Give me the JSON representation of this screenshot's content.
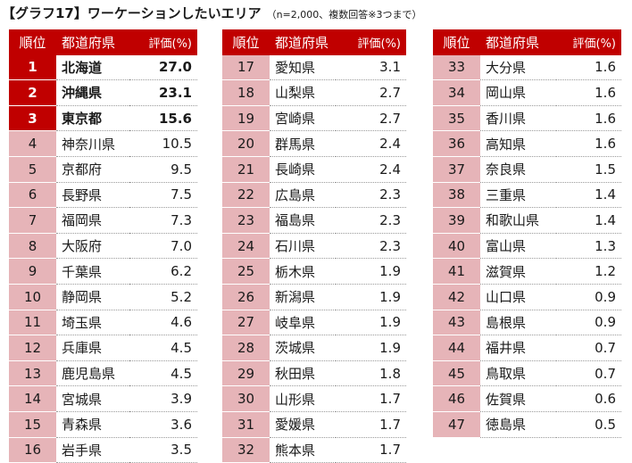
{
  "title": "【グラフ17】ワーケーションしたいエリア",
  "note": "（n=2,000、複数回答※3つまで）",
  "headers": {
    "rank": "順位",
    "name": "都道府県",
    "value": "評価(%)"
  },
  "colors": {
    "header_bg": "#c00000",
    "rank_bg": "#e6b4b8",
    "header_text": "#ffffff"
  },
  "chart_data": {
    "type": "table",
    "columns": [
      "順位",
      "都道府県",
      "評価(%)"
    ],
    "rows": [
      [
        "1",
        "北海道",
        "27.0"
      ],
      [
        "2",
        "沖縄県",
        "23.1"
      ],
      [
        "3",
        "東京都",
        "15.6"
      ],
      [
        "4",
        "神奈川県",
        "10.5"
      ],
      [
        "5",
        "京都府",
        "9.5"
      ],
      [
        "6",
        "長野県",
        "7.5"
      ],
      [
        "7",
        "福岡県",
        "7.3"
      ],
      [
        "8",
        "大阪府",
        "7.0"
      ],
      [
        "9",
        "千葉県",
        "6.2"
      ],
      [
        "10",
        "静岡県",
        "5.2"
      ],
      [
        "11",
        "埼玉県",
        "4.6"
      ],
      [
        "12",
        "兵庫県",
        "4.5"
      ],
      [
        "13",
        "鹿児島県",
        "4.5"
      ],
      [
        "14",
        "宮城県",
        "3.9"
      ],
      [
        "15",
        "青森県",
        "3.6"
      ],
      [
        "16",
        "岩手県",
        "3.5"
      ],
      [
        "17",
        "愛知県",
        "3.1"
      ],
      [
        "18",
        "山梨県",
        "2.7"
      ],
      [
        "19",
        "宮崎県",
        "2.7"
      ],
      [
        "20",
        "群馬県",
        "2.4"
      ],
      [
        "21",
        "長崎県",
        "2.4"
      ],
      [
        "22",
        "広島県",
        "2.3"
      ],
      [
        "23",
        "福島県",
        "2.3"
      ],
      [
        "24",
        "石川県",
        "2.3"
      ],
      [
        "25",
        "栃木県",
        "1.9"
      ],
      [
        "26",
        "新潟県",
        "1.9"
      ],
      [
        "27",
        "岐阜県",
        "1.9"
      ],
      [
        "28",
        "茨城県",
        "1.9"
      ],
      [
        "29",
        "秋田県",
        "1.8"
      ],
      [
        "30",
        "山形県",
        "1.7"
      ],
      [
        "31",
        "愛媛県",
        "1.7"
      ],
      [
        "32",
        "熊本県",
        "1.7"
      ],
      [
        "33",
        "大分県",
        "1.6"
      ],
      [
        "34",
        "岡山県",
        "1.6"
      ],
      [
        "35",
        "香川県",
        "1.6"
      ],
      [
        "36",
        "高知県",
        "1.6"
      ],
      [
        "37",
        "奈良県",
        "1.5"
      ],
      [
        "38",
        "三重県",
        "1.4"
      ],
      [
        "39",
        "和歌山県",
        "1.4"
      ],
      [
        "40",
        "富山県",
        "1.3"
      ],
      [
        "41",
        "滋賀県",
        "1.2"
      ],
      [
        "42",
        "山口県",
        "0.9"
      ],
      [
        "43",
        "島根県",
        "0.9"
      ],
      [
        "44",
        "福井県",
        "0.7"
      ],
      [
        "45",
        "鳥取県",
        "0.7"
      ],
      [
        "46",
        "佐賀県",
        "0.6"
      ],
      [
        "47",
        "徳島県",
        "0.5"
      ]
    ]
  }
}
